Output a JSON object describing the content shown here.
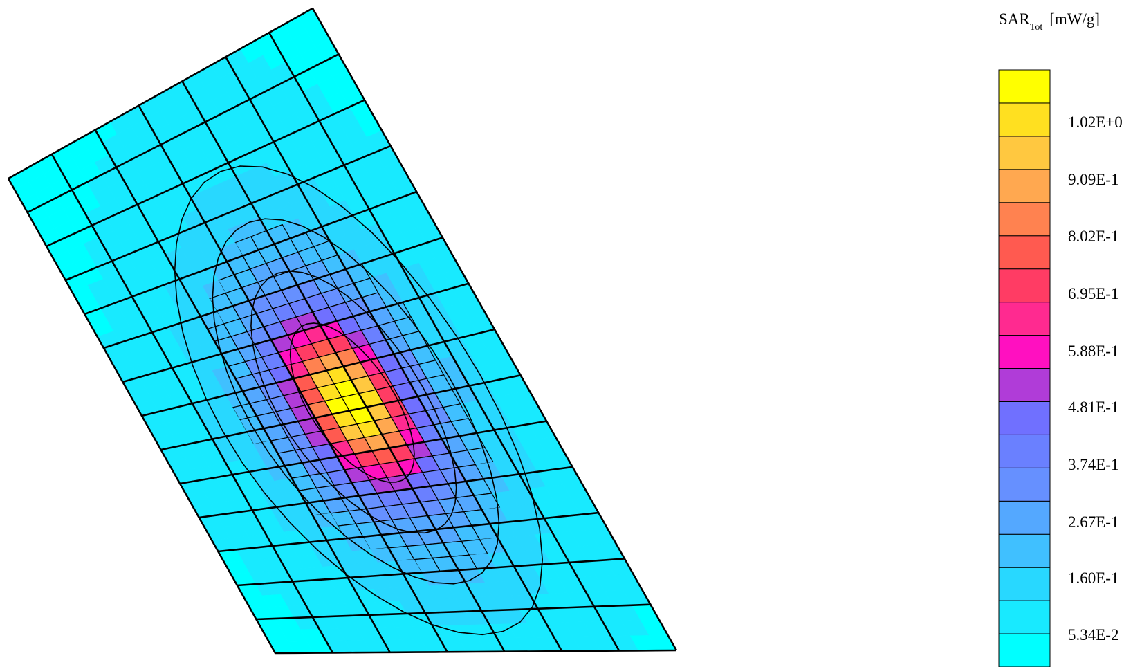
{
  "chart_data": {
    "type": "heatmap",
    "subtype": "3d-surface-mesh",
    "colorbar": {
      "title_main": "SAR",
      "title_sub": "Tot",
      "title_unit": "[mW/g]",
      "levels": [
        "1.02E+0",
        "9.09E-1",
        "8.02E-1",
        "6.95E-1",
        "5.88E-1",
        "4.81E-1",
        "3.74E-1",
        "2.67E-1",
        "1.60E-1",
        "5.34E-2"
      ],
      "colors": [
        "#00ffff",
        "#18eaff",
        "#28d8ff",
        "#40c0ff",
        "#54a8ff",
        "#6690ff",
        "#6a80ff",
        "#7070ff",
        "#b03cd8",
        "#ff10c0",
        "#ff2a90",
        "#ff3c64",
        "#ff5a50",
        "#ff8250",
        "#ffa850",
        "#ffc840",
        "#ffe020",
        "#ffff00"
      ]
    },
    "mesh": {
      "grid_rows": 14,
      "grid_cols": 7,
      "peak": 1.1,
      "peak_center": [
        0.46,
        0.56
      ]
    },
    "legend_position": "right"
  }
}
